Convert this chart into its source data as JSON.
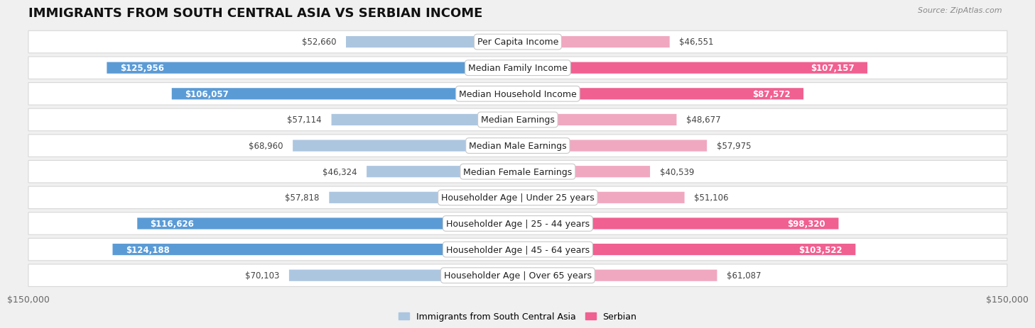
{
  "title": "IMMIGRANTS FROM SOUTH CENTRAL ASIA VS SERBIAN INCOME",
  "source": "Source: ZipAtlas.com",
  "categories": [
    "Per Capita Income",
    "Median Family Income",
    "Median Household Income",
    "Median Earnings",
    "Median Male Earnings",
    "Median Female Earnings",
    "Householder Age | Under 25 years",
    "Householder Age | 25 - 44 years",
    "Householder Age | 45 - 64 years",
    "Householder Age | Over 65 years"
  ],
  "left_values": [
    52660,
    125956,
    106057,
    57114,
    68960,
    46324,
    57818,
    116626,
    124188,
    70103
  ],
  "right_values": [
    46551,
    107157,
    87572,
    48677,
    57975,
    40539,
    51106,
    98320,
    103522,
    61087
  ],
  "left_labels": [
    "$52,660",
    "$125,956",
    "$106,057",
    "$57,114",
    "$68,960",
    "$46,324",
    "$57,818",
    "$116,626",
    "$124,188",
    "$70,103"
  ],
  "right_labels": [
    "$46,551",
    "$107,157",
    "$87,572",
    "$48,677",
    "$57,975",
    "$40,539",
    "$51,106",
    "$98,320",
    "$103,522",
    "$61,087"
  ],
  "left_color_strong": "#5b9bd5",
  "left_color_light": "#adc6e0",
  "right_color_strong": "#f06090",
  "right_color_light": "#f0a8c0",
  "max_value": 150000,
  "background_color": "#f0f0f0",
  "row_bg_color": "#ffffff",
  "row_border_color": "#d8d8d8",
  "legend_left": "Immigrants from South Central Asia",
  "legend_right": "Serbian",
  "xlabel_left": "$150,000",
  "xlabel_right": "$150,000",
  "strong_threshold": 80000,
  "inside_threshold": 20000,
  "bar_height": 0.52,
  "title_fontsize": 13,
  "label_fontsize": 8.5,
  "category_fontsize": 9
}
